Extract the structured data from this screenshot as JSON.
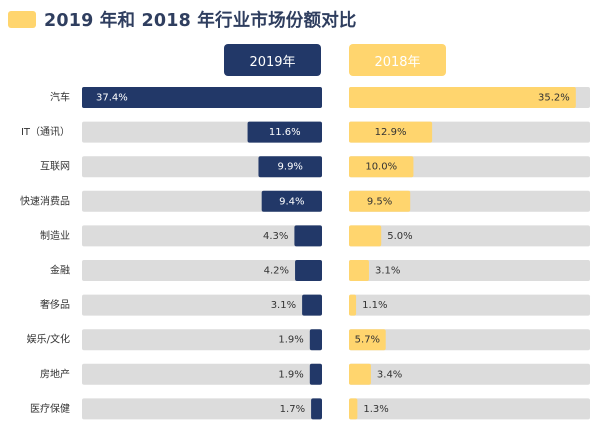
{
  "title": "2019 年和 2018 年行业市场份额对比",
  "colors": {
    "title_swatch": "#ffd56e",
    "title_text": "#2f3e5f",
    "series_2019": "#223868",
    "series_2018": "#ffd56e",
    "track": "#dcdcdc"
  },
  "chart_data": {
    "type": "bar",
    "orientation": "horizontal, two mirrored panels",
    "title": "2019 年和 2018 年行业市场份额对比",
    "categories": [
      "汽车",
      "IT（通讯）",
      "互联网",
      "快速消费品",
      "制造业",
      "金融",
      "奢侈品",
      "娱乐/文化",
      "房地产",
      "医疗保健"
    ],
    "series": [
      {
        "name": "2019年",
        "values": [
          37.4,
          11.6,
          9.9,
          9.4,
          4.3,
          4.2,
          3.1,
          1.9,
          1.9,
          1.7
        ],
        "labels": [
          "37.4%",
          "11.6%",
          "9.9%",
          "9.4%",
          "4.3%",
          "4.2%",
          "3.1%",
          "1.9%",
          "1.9%",
          "1.7%"
        ],
        "direction": "right-to-left",
        "color": "#223868"
      },
      {
        "name": "2018年",
        "values": [
          35.2,
          12.9,
          10.0,
          9.5,
          5.0,
          3.1,
          1.1,
          5.7,
          3.4,
          1.3
        ],
        "labels": [
          "35.2%",
          "12.9%",
          "10.0%",
          "9.5%",
          "5.0%",
          "3.1%",
          "1.1%",
          "5.7%",
          "3.4%",
          "1.3%"
        ],
        "direction": "left-to-right",
        "color": "#ffd56e"
      }
    ],
    "xlim": [
      0,
      37.4
    ],
    "grid": false,
    "legend": "top (year headers above each panel)"
  }
}
